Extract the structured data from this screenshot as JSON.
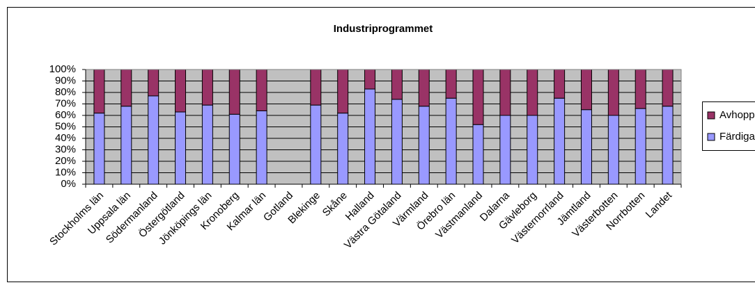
{
  "chart_data": {
    "type": "stacked_bar_100",
    "title": "Industriprogrammet",
    "categories": [
      "Stockholms län",
      "Uppsala län",
      "Södermanland",
      "Östergötland",
      "Jönköpings län",
      "Kronoberg",
      "Kalmar län",
      "Gotland",
      "Blekinge",
      "Skåne",
      "Halland",
      "Västra Götaland",
      "Värmland",
      "Örebro län",
      "Västmanland",
      "Dalarna",
      "Gävleborg",
      "Västernorrland",
      "Jämtland",
      "Västerbotten",
      "Norrbotten",
      "Landet"
    ],
    "series": [
      {
        "name": "Färdiga",
        "color": "#9999ff",
        "values": [
          62,
          68,
          77,
          63,
          69,
          61,
          64,
          null,
          69,
          62,
          83,
          74,
          68,
          75,
          52,
          60,
          60,
          75,
          65,
          60,
          66,
          68
        ]
      },
      {
        "name": "Avhopp",
        "color": "#993366",
        "values": [
          38,
          32,
          23,
          37,
          31,
          39,
          36,
          null,
          31,
          38,
          17,
          26,
          32,
          25,
          48,
          40,
          40,
          25,
          35,
          40,
          34,
          32
        ]
      }
    ],
    "ylim": [
      0,
      100
    ],
    "yticks": [
      {
        "value": 0,
        "label": "0%"
      },
      {
        "value": 10,
        "label": "10%"
      },
      {
        "value": 20,
        "label": "20%"
      },
      {
        "value": 30,
        "label": "30%"
      },
      {
        "value": 40,
        "label": "40%"
      },
      {
        "value": 50,
        "label": "50%"
      },
      {
        "value": 60,
        "label": "60%"
      },
      {
        "value": 70,
        "label": "70%"
      },
      {
        "value": 80,
        "label": "80%"
      },
      {
        "value": 90,
        "label": "90%"
      },
      {
        "value": 100,
        "label": "100%"
      }
    ],
    "grid": true,
    "legend": "right"
  }
}
